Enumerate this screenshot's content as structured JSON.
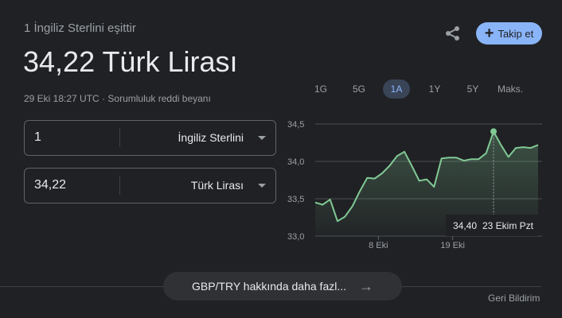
{
  "header": {
    "subtitle": "1 İngiliz Sterlini eşittir",
    "result": "34,22 Türk Lirası",
    "timestamp": "29 Eki 18:27 UTC",
    "separator": "·",
    "disclaimer": "Sorumluluk reddi beyanı",
    "share_icon": "share-icon",
    "follow_label": "Takip et",
    "follow_icon": "+"
  },
  "ranges": [
    {
      "label": "1G",
      "selected": false
    },
    {
      "label": "5G",
      "selected": false
    },
    {
      "label": "1A",
      "selected": true
    },
    {
      "label": "1Y",
      "selected": false
    },
    {
      "label": "5Y",
      "selected": false
    },
    {
      "label": "Maks.",
      "selected": false
    }
  ],
  "converter": {
    "from": {
      "value": "1",
      "currency": "İngiliz Sterlini"
    },
    "to": {
      "value": "34,22",
      "currency": "Türk Lirası"
    }
  },
  "colors": {
    "line": "#81c995",
    "accent": "#8ab4f8",
    "background": "#202124"
  },
  "chart_data": {
    "type": "area",
    "ylim": [
      33.0,
      34.5
    ],
    "y_ticks": [
      "34,5",
      "34,0",
      "33,5",
      "33,0"
    ],
    "y_tick_values": [
      34.5,
      34.0,
      33.5,
      33.0
    ],
    "x_ticks": [
      {
        "label": "8 Eki",
        "at": 8.5
      },
      {
        "label": "19 Eki",
        "at": 18.5
      }
    ],
    "grid": true,
    "values": [
      33.45,
      33.42,
      33.49,
      33.2,
      33.26,
      33.4,
      33.6,
      33.78,
      33.77,
      33.84,
      33.94,
      34.07,
      34.13,
      33.94,
      33.74,
      33.76,
      33.66,
      34.04,
      34.05,
      34.05,
      34.01,
      34.03,
      34.03,
      34.11,
      34.4,
      34.22,
      34.06,
      34.18,
      34.19,
      34.18,
      34.22
    ],
    "highlight_index": 24,
    "tooltip": {
      "value": "34,40",
      "date": "23 Ekim Pzt"
    }
  },
  "footer": {
    "more_label": "GBP/TRY hakkında daha fazl...",
    "more_icon": "→",
    "feedback": "Geri Bildirim"
  }
}
